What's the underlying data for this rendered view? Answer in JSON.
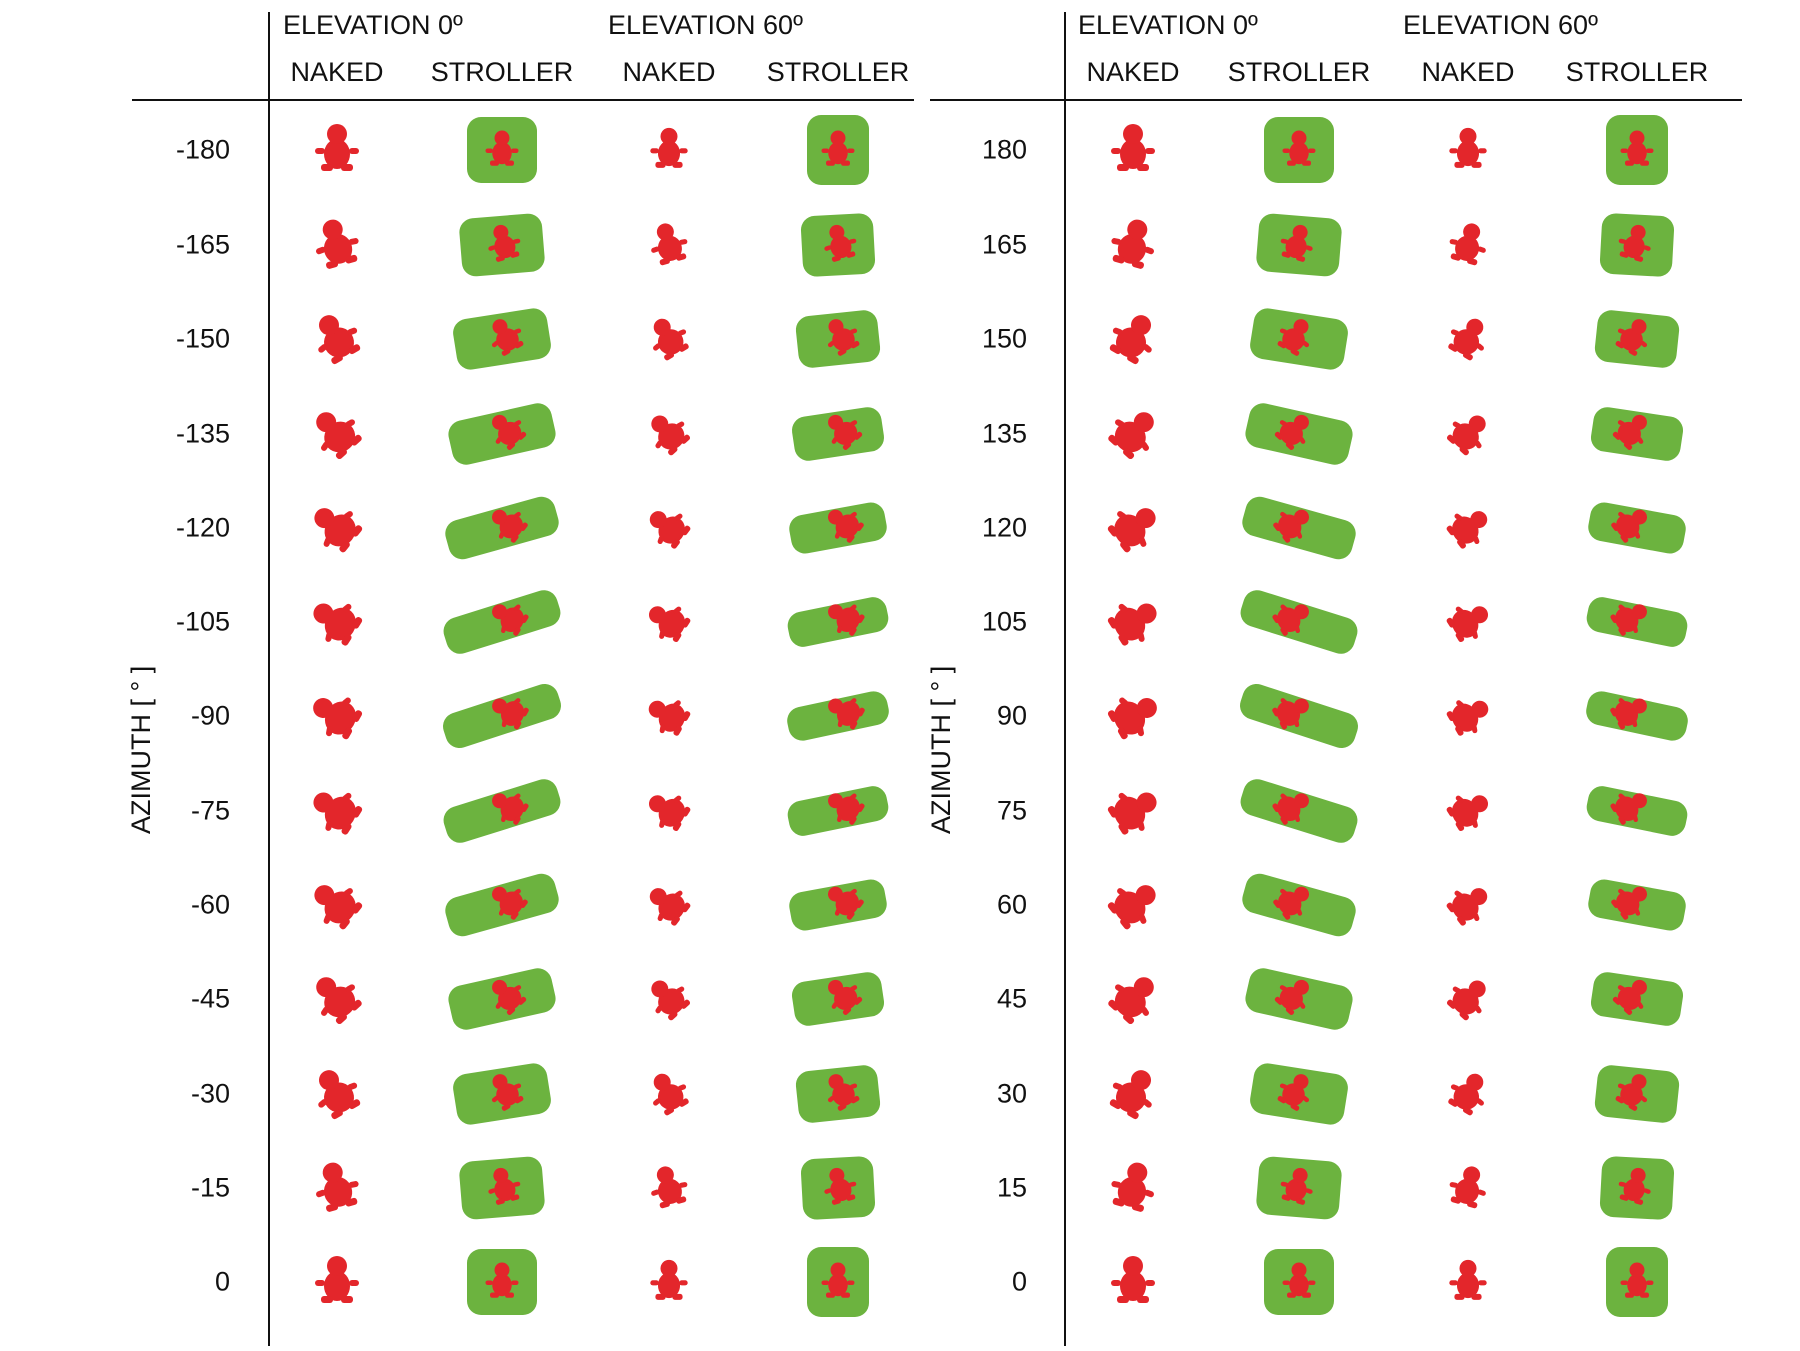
{
  "panels": [
    {
      "id": "negative",
      "elevations": [
        {
          "label": "ELEVATION 0º",
          "conditions": [
            "NAKED",
            "STROLLER"
          ]
        },
        {
          "label": "ELEVATION 60º",
          "conditions": [
            "NAKED",
            "STROLLER"
          ]
        }
      ],
      "azimuth_label": "AZIMUTH [ ° ]",
      "azimuths": [
        "-180",
        "-165",
        "-150",
        "-135",
        "-120",
        "-105",
        "-90",
        "-75",
        "-60",
        "-45",
        "-30",
        "-15",
        "0"
      ]
    },
    {
      "id": "positive",
      "elevations": [
        {
          "label": "ELEVATION 0º",
          "conditions": [
            "NAKED",
            "STROLLER"
          ]
        },
        {
          "label": "ELEVATION 60º",
          "conditions": [
            "NAKED",
            "STROLLER"
          ]
        }
      ],
      "azimuth_label": "AZIMUTH [ ° ]",
      "azimuths": [
        "180",
        "165",
        "150",
        "135",
        "120",
        "105",
        "90",
        "75",
        "60",
        "45",
        "30",
        "15",
        "0"
      ]
    }
  ],
  "colors": {
    "infant": "#e3262b",
    "stroller": "#6cb33f",
    "rule": "#111111"
  }
}
